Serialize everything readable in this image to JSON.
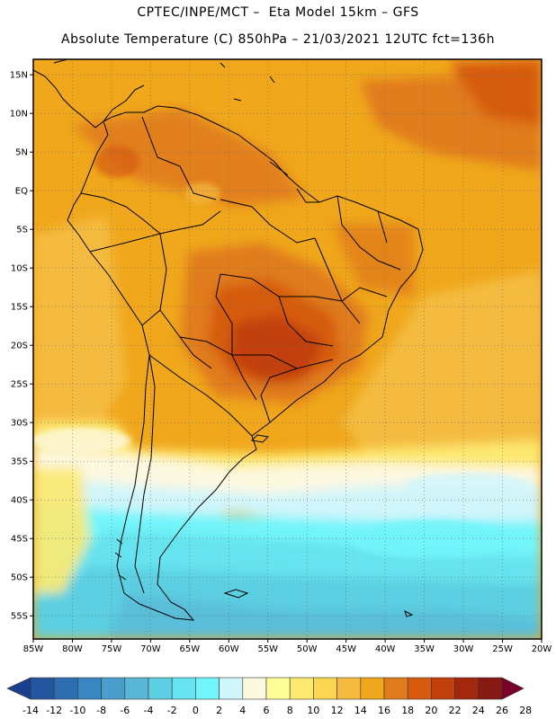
{
  "header": {
    "line1": "CPTEC/INPE/MCT –  Eta Model 15km – GFS",
    "line2": "Absolute Temperature (C) 850hPa – 21/03/2021 12UTC fct=136h"
  },
  "map": {
    "lat_labels": [
      "15N",
      "10N",
      "5N",
      "EQ",
      "5S",
      "10S",
      "15S",
      "20S",
      "25S",
      "30S",
      "35S",
      "40S",
      "45S",
      "50S",
      "55S"
    ],
    "lon_labels": [
      "85W",
      "80W",
      "75W",
      "70W",
      "65W",
      "60W",
      "55W",
      "50W",
      "45W",
      "40W",
      "35W",
      "30W",
      "25W",
      "20W"
    ],
    "lat_range": [
      17,
      -58
    ],
    "lon_range": [
      -85,
      -20
    ],
    "grid": "dotted"
  },
  "colorbar": {
    "labels": [
      "-14",
      "-12",
      "-10",
      "-8",
      "-6",
      "-4",
      "-2",
      "0",
      "2",
      "4",
      "6",
      "8",
      "10",
      "12",
      "14",
      "16",
      "18",
      "20",
      "22",
      "24",
      "26",
      "28"
    ],
    "colors": [
      "#1b3f8f",
      "#24559f",
      "#2e6db0",
      "#3a86c0",
      "#4a9ecb",
      "#5ab6d6",
      "#5ccfe2",
      "#66e3ee",
      "#72f5fa",
      "#d0f5fb",
      "#fdf8e0",
      "#fefe98",
      "#fde970",
      "#fbd653",
      "#f4bb3f",
      "#f0a71c",
      "#e07c1d",
      "#d65b0f",
      "#c2400e",
      "#a2270c",
      "#861912",
      "#7a0029"
    ]
  }
}
